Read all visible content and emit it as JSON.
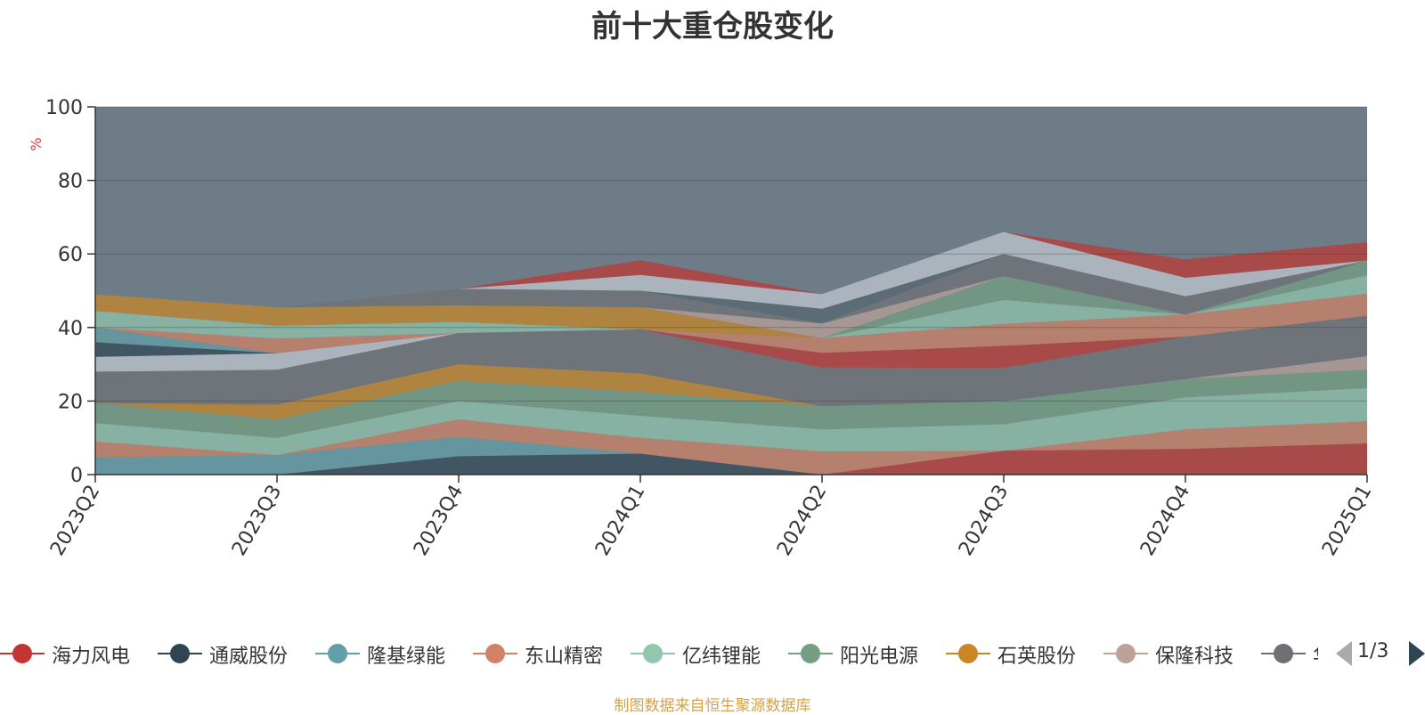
{
  "chart_data": {
    "type": "area",
    "stacked": true,
    "title": "前十大重仓股变化",
    "ylabel": "%",
    "ylim": [
      0,
      100
    ],
    "yticks": [
      "0",
      "20",
      "40",
      "60",
      "80",
      "100"
    ],
    "categories": [
      "2023Q2",
      "2023Q3",
      "2023Q4",
      "2024Q1",
      "2024Q2",
      "2024Q3",
      "2024Q4",
      "2025Q1"
    ],
    "grid": true,
    "legend_position": "bottom",
    "series": [
      {
        "name": "海力风电",
        "color": "#c23531",
        "values": [
          0,
          0,
          0,
          0,
          0,
          6.5,
          7,
          8.5
        ]
      },
      {
        "name": "通威股份",
        "color": "#2f4554",
        "values": [
          0,
          0,
          5,
          5.7,
          0,
          0,
          0,
          0
        ]
      },
      {
        "name": "隆基绿能",
        "color": "#61a0a8",
        "values": [
          4.7,
          5.3,
          5.3,
          0,
          0,
          0,
          0,
          0
        ]
      },
      {
        "name": "东山精密",
        "color": "#d48265",
        "values": [
          4.3,
          0,
          4.7,
          4.3,
          6.3,
          0,
          5.3,
          6
        ]
      },
      {
        "name": "亿纬锂能",
        "color": "#91c7ae",
        "values": [
          5,
          4.7,
          5,
          6,
          6,
          7.2,
          8.7,
          9
        ]
      },
      {
        "name": "阳光电源",
        "color": "#749f83",
        "values": [
          5.5,
          5,
          5.5,
          6.5,
          6.3,
          6.3,
          5,
          5
        ]
      },
      {
        "name": "石英股份",
        "color": "#ca8622",
        "values": [
          0,
          4,
          4.5,
          5,
          0,
          0,
          0,
          0
        ]
      },
      {
        "name": "保隆科技",
        "color": "#bda29a",
        "values": [
          0,
          0,
          0,
          0,
          0,
          0,
          0,
          3.7
        ]
      },
      {
        "name": "",
        "color": "#6e7074",
        "values": [
          8.5,
          9.5,
          8.5,
          12,
          10.5,
          9,
          11.5,
          11
        ]
      },
      {
        "name": "",
        "color": "#546570",
        "values": [
          0,
          0,
          0,
          0,
          0,
          0,
          0,
          0
        ]
      },
      {
        "name": "",
        "color": "#c4ccd3",
        "values": [
          4,
          4.5,
          0,
          0,
          0,
          0,
          0,
          0
        ]
      },
      {
        "name": "",
        "color": "#2f4554",
        "values": [
          4,
          0,
          0,
          0,
          0,
          0,
          0,
          0
        ]
      },
      {
        "name": "",
        "color": "#c23531",
        "values": [
          0,
          0,
          0,
          0,
          4,
          6,
          0,
          0
        ]
      },
      {
        "name": "",
        "color": "#61a0a8",
        "values": [
          4,
          0,
          0,
          0,
          0,
          0,
          0,
          0
        ]
      },
      {
        "name": "",
        "color": "#d48265",
        "values": [
          0,
          4,
          0,
          0,
          4,
          6,
          6,
          6
        ]
      },
      {
        "name": "",
        "color": "#91c7ae",
        "values": [
          4.5,
          3.5,
          3,
          0,
          0,
          6.5,
          0,
          5
        ]
      },
      {
        "name": "",
        "color": "#749f83",
        "values": [
          0,
          0,
          0,
          0,
          0,
          6.5,
          0,
          4
        ]
      },
      {
        "name": "",
        "color": "#ca8622",
        "values": [
          4.5,
          5,
          4.5,
          6,
          0,
          0,
          0,
          0
        ]
      },
      {
        "name": "",
        "color": "#bda29a",
        "values": [
          0,
          0,
          0,
          0,
          4,
          0,
          0,
          0
        ]
      },
      {
        "name": "",
        "color": "#6e7074",
        "values": [
          0,
          0,
          4.5,
          4.5,
          0,
          6,
          5,
          0
        ]
      },
      {
        "name": "",
        "color": "#546570",
        "values": [
          0,
          0,
          0,
          0,
          4,
          0,
          0,
          0
        ]
      },
      {
        "name": "",
        "color": "#c4ccd3",
        "values": [
          0,
          0,
          0,
          4.3,
          4,
          6,
          5,
          0
        ]
      },
      {
        "name": "",
        "color": "#2f4554",
        "values": [
          0,
          0,
          0,
          0,
          0,
          0,
          0,
          0
        ]
      },
      {
        "name": "",
        "color": "#c23531",
        "values": [
          0,
          0,
          0,
          4,
          0,
          0,
          5,
          5
        ]
      }
    ],
    "remainder_color": "#6e7c88"
  },
  "legend": {
    "items": [
      {
        "name": "海力风电",
        "color": "#c23531"
      },
      {
        "name": "通威股份",
        "color": "#2f4554"
      },
      {
        "name": "隆基绿能",
        "color": "#61a0a8"
      },
      {
        "name": "东山精密",
        "color": "#d48265"
      },
      {
        "name": "亿纬锂能",
        "color": "#91c7ae"
      },
      {
        "name": "阳光电源",
        "color": "#749f83"
      },
      {
        "name": "石英股份",
        "color": "#ca8622"
      },
      {
        "name": "保隆科技",
        "color": "#bda29a"
      },
      {
        "name": "华",
        "color": "#6e7074"
      }
    ],
    "page_indicator": "1/3"
  },
  "source": "制图数据来自恒生聚源数据库"
}
